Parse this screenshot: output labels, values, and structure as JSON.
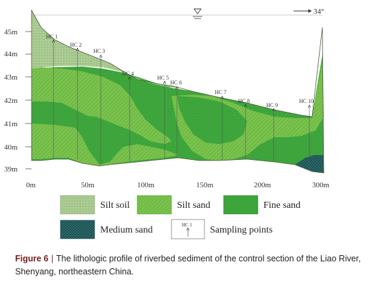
{
  "diagram": {
    "y_axis": {
      "ticks": [
        "45m",
        "44m",
        "43m",
        "42m",
        "41m",
        "40m",
        "39m"
      ]
    },
    "x_axis": {
      "ticks": [
        "0m",
        "50m",
        "100m",
        "150m",
        "200m",
        "300m"
      ]
    },
    "flow_label": "34°",
    "sampling_points": [
      "HC 1",
      "HC 2",
      "HC 3",
      "HC 4",
      "HC 5",
      "HC 6",
      "HC 7",
      "HC 8",
      "HC 9",
      "HC 10"
    ],
    "legend": {
      "silt_soil": "Silt soil",
      "silt_sand": "Silt sand",
      "fine_sand": "Fine sand",
      "medium_sand": "Medium sand",
      "sampling_points": "Sampling points",
      "sample_icon_label": "HC 1"
    },
    "colors": {
      "silt_soil": "#a8c98f",
      "silt_sand": "#6fbe45",
      "fine_sand": "#3aa23a",
      "medium_sand": "#2c6e6e"
    }
  },
  "caption": {
    "figure_label": "Figure 6",
    "text": "The lithologic profile of riverbed sediment of the control section of the Liao River, Shenyang, northeastern China."
  }
}
